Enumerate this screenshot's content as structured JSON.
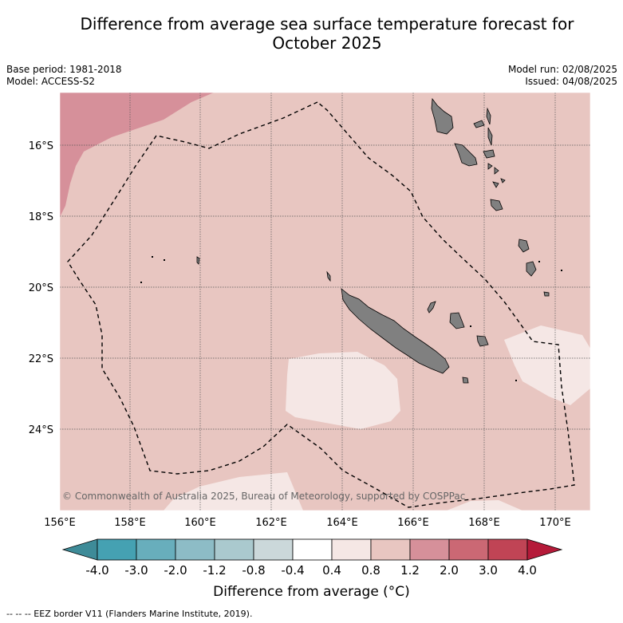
{
  "title_line1": "Difference from average sea surface temperature forecast for",
  "title_line2": "October 2025",
  "meta": {
    "base_period": "Base period: 1981-2018",
    "model": "Model: ACCESS-S2",
    "model_run": "Model run: 02/08/2025",
    "issued": "Issued: 04/08/2025"
  },
  "lat_ticks": [
    "16°S",
    "18°S",
    "20°S",
    "22°S",
    "24°S"
  ],
  "lon_ticks": [
    "156°E",
    "158°E",
    "160°E",
    "162°E",
    "164°E",
    "166°E",
    "168°E",
    "170°E"
  ],
  "copyright": "© Commonwealth of Australia 2025, Bureau of Meteorology, supported by COSPPac",
  "colorbar": {
    "labels": [
      "-4.0",
      "-3.0",
      "-2.0",
      "-1.2",
      "-0.8",
      "-0.4",
      "0.4",
      "0.8",
      "1.2",
      "2.0",
      "3.0",
      "4.0"
    ],
    "colors": [
      "#45a1b2",
      "#68aebc",
      "#8dbcc6",
      "#aac9ce",
      "#cbd8da",
      "#ffffff",
      "#f5e7e5",
      "#e8c6c1",
      "#d6909a",
      "#cb6874",
      "#c04455"
    ],
    "under_color": "#3e8b98",
    "over_color": "#b51a39",
    "title": "Difference from average (°C)"
  },
  "legend_note": "--  --  -- EEZ border V11 (Flanders Marine Institute, 2019).",
  "map_colors": {
    "ocean": "#e8c6c1",
    "warm": "#d6909a",
    "cool": "#f5e7e5",
    "land": "#808080"
  }
}
